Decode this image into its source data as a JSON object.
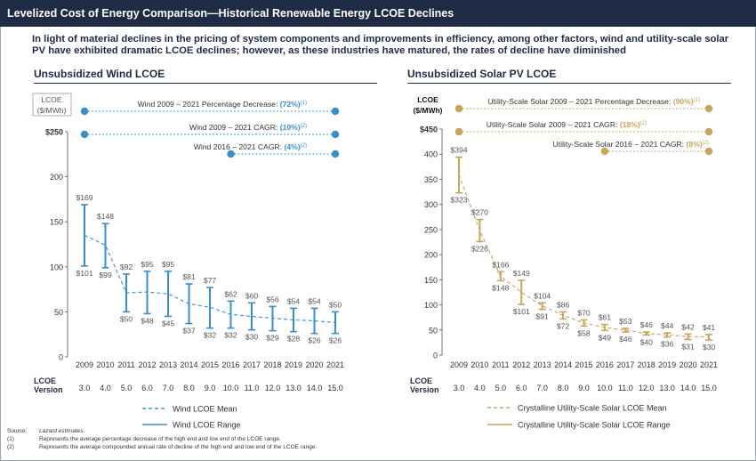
{
  "header": {
    "title": "Levelized Cost of Energy Comparison—Historical Renewable Energy LCOE Declines"
  },
  "subtitle": "In light of material declines in the pricing of system components and improvements in efficiency, among other factors, wind and utility-scale solar PV have exhibited dramatic LCOE declines; however, as these industries have matured, the rates of decline have diminished",
  "footnotes": {
    "source_key": "Source:",
    "source_text": "Lazard estimates.",
    "note1_key": "(1)",
    "note1_text": "Represents the average percentage decrease of the high end and low end of the LCOE range.",
    "note2_key": "(2)",
    "note2_text": "Represents the average compounded annual rate of decline of the high end and low end of the LCOE range."
  },
  "colors": {
    "navy": "#1f2a44",
    "wind": "#3b8fc8",
    "solar": "#c9a45c",
    "text": "#333333"
  },
  "chart_data": [
    {
      "type": "range-bar-with-mean-line",
      "title": "Unsubsidized Wind LCOE",
      "unit_label": [
        "LCOE",
        "($/MWh)"
      ],
      "ylim": [
        0,
        250
      ],
      "yticks": [
        0,
        50,
        100,
        150,
        200,
        250
      ],
      "ytick_labels": [
        "0",
        "50",
        "100",
        "150",
        "200",
        "$250"
      ],
      "x": [
        "2009",
        "2010",
        "2011",
        "2012",
        "2013",
        "2014",
        "2015",
        "2016",
        "2017",
        "2018",
        "2019",
        "2020",
        "2021"
      ],
      "version_label": [
        "LCOE",
        "Version"
      ],
      "versions": [
        "3.0",
        "4.0",
        "5.0",
        "6.0",
        "7.0",
        "8.0",
        "9.0",
        "10.0",
        "11.0",
        "12.0",
        "13.0",
        "14.0",
        "15.0"
      ],
      "high": [
        169,
        148,
        92,
        95,
        95,
        81,
        77,
        62,
        60,
        56,
        54,
        54,
        50
      ],
      "low": [
        101,
        99,
        50,
        48,
        45,
        37,
        32,
        32,
        30,
        29,
        28,
        26,
        26
      ],
      "high_labels": [
        "$169",
        "$148",
        "$92",
        "$95",
        "$95",
        "$81",
        "$77",
        "$62",
        "$60",
        "$56",
        "$54",
        "$54",
        "$50"
      ],
      "low_labels": [
        "$101",
        "$99",
        "$50",
        "$48",
        "$45",
        "$37",
        "$32",
        "$32",
        "$30",
        "$29",
        "$28",
        "$26",
        "$26"
      ],
      "mean": [
        135,
        124,
        71,
        72,
        70,
        59,
        55,
        47,
        45,
        43,
        41,
        40,
        38
      ],
      "annotations": [
        {
          "text": "Wind 2009 – 2021 Percentage Decrease: ",
          "value": "(72%)",
          "sup": "(1)",
          "from": "2009",
          "to": "2021"
        },
        {
          "text": "Wind 2009 – 2021 CAGR: ",
          "value": "(10%)",
          "sup": "(2)",
          "from": "2009",
          "to": "2021"
        },
        {
          "text": "Wind 2016 – 2021 CAGR: ",
          "value": "(4%)",
          "sup": "(2)",
          "from": "2016",
          "to": "2021"
        }
      ],
      "legend": [
        {
          "label": "Wind LCOE Mean",
          "style": "dashed"
        },
        {
          "label": "Wind LCOE Range",
          "style": "solid"
        }
      ],
      "color": "#3b8fc8"
    },
    {
      "type": "range-bar-with-mean-line",
      "title": "Unsubsidized Solar PV LCOE",
      "unit_label": [
        "LCOE",
        "($/MWh)"
      ],
      "ylim": [
        0,
        450
      ],
      "yticks": [
        0,
        50,
        100,
        150,
        200,
        250,
        300,
        350,
        400,
        450
      ],
      "ytick_labels": [
        "0",
        "50",
        "100",
        "150",
        "200",
        "250",
        "300",
        "350",
        "400",
        "$450"
      ],
      "x": [
        "2009",
        "2010",
        "2011",
        "2012",
        "2013",
        "2014",
        "2015",
        "2016",
        "2017",
        "2018",
        "2019",
        "2020",
        "2021"
      ],
      "version_label": [
        "LCOE",
        "Version"
      ],
      "versions": [
        "3.0",
        "4.0",
        "5.0",
        "6.0",
        "7.0",
        "8.0",
        "9.0",
        "10.0",
        "11.0",
        "12.0",
        "13.0",
        "14.0",
        "15.0"
      ],
      "high": [
        394,
        270,
        166,
        149,
        104,
        86,
        70,
        61,
        53,
        46,
        44,
        42,
        41
      ],
      "low": [
        323,
        226,
        148,
        101,
        91,
        72,
        58,
        49,
        46,
        40,
        36,
        31,
        30
      ],
      "high_labels": [
        "$394",
        "$270",
        "$166",
        "$149",
        "$104",
        "$86",
        "$70",
        "$61",
        "$53",
        "$46",
        "$44",
        "$42",
        "$41"
      ],
      "low_labels": [
        "$323",
        "$226",
        "$148",
        "$101",
        "$91",
        "$72",
        "$58",
        "$49",
        "$46",
        "$40",
        "$36",
        "$31",
        "$30"
      ],
      "mean": [
        359,
        248,
        157,
        125,
        98,
        79,
        64,
        55,
        50,
        43,
        40,
        37,
        36
      ],
      "annotations": [
        {
          "text": "Utility-Scale Solar 2009 – 2021 Percentage Decrease: ",
          "value": "(90%)",
          "sup": "(1)",
          "from": "2009",
          "to": "2021"
        },
        {
          "text": "Utility-Scale Solar 2009 – 2021 CAGR: ",
          "value": "(18%)",
          "sup": "(2)",
          "from": "2009",
          "to": "2021"
        },
        {
          "text": "Utility-Scale Solar 2016 – 2021 CAGR: ",
          "value": "(8%)",
          "sup": "(2)",
          "from": "2016",
          "to": "2021"
        }
      ],
      "legend": [
        {
          "label": "Crystalline Utility-Scale Solar LCOE Mean",
          "style": "dashed"
        },
        {
          "label": "Crystalline Utility-Scale Solar LCOE Range",
          "style": "solid"
        }
      ],
      "color": "#c9a45c"
    }
  ]
}
